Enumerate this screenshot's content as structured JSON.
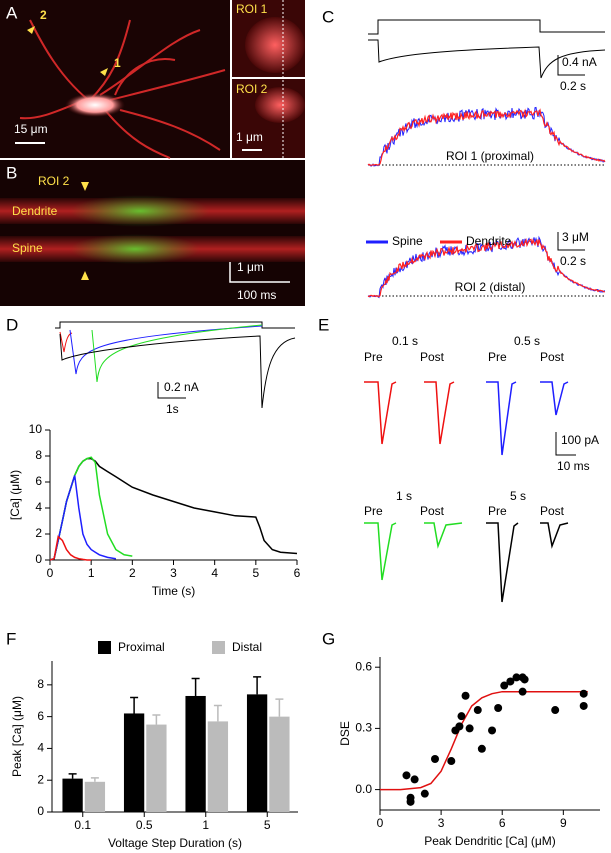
{
  "panel_labels": [
    "A",
    "B",
    "C",
    "D",
    "E",
    "F",
    "G"
  ],
  "panel_a": {
    "markers": [
      "2",
      "1"
    ],
    "scale_main": "15 μm",
    "roi1": "ROI 1",
    "roi2": "ROI 2",
    "scale_inset": "1 μm"
  },
  "panel_b": {
    "roi": "ROI 2",
    "dendrite": "Dendrite",
    "spine": "Spine",
    "scale_x": "1 μm",
    "scale_t": "100 ms"
  },
  "panel_c": {
    "current_scale": "0.4 nA",
    "time_scale_1": "0.2 s",
    "roi1": "ROI 1 (proximal)",
    "legend": [
      "Spine",
      "Dendrite"
    ],
    "legend_colors": [
      "#1f1fff",
      "#ff2222"
    ],
    "conc_scale": "3 μM",
    "time_scale_2": "0.2 s",
    "roi2": "ROI 2 (distal)"
  },
  "panel_d": {
    "current_scale": "0.2 nA",
    "time_scale": "1s"
  },
  "panel_e": {
    "groups": [
      {
        "duration": "0.1 s",
        "pre": "Pre",
        "post": "Post"
      },
      {
        "duration": "0.5 s",
        "pre": "Pre",
        "post": "Post"
      },
      {
        "duration": "1 s",
        "pre": "Pre",
        "post": "Post"
      },
      {
        "duration": "5 s",
        "pre": "Pre",
        "post": "Post"
      }
    ],
    "amp_scale": "100 pA",
    "time_scale": "10 ms"
  },
  "chart_data": [
    {
      "type": "line",
      "xlabel": "Time (s)",
      "ylabel": "[Ca] (μM)",
      "x": [
        0,
        0.1,
        0.2,
        0.3,
        0.4,
        0.5,
        0.6,
        0.7,
        0.8,
        0.9,
        1.0,
        1.1,
        1.2,
        1.4,
        1.6,
        1.8,
        2.0,
        2.5,
        3,
        3.5,
        4,
        4.5,
        5,
        5.1,
        5.2,
        5.4,
        5.6,
        6
      ],
      "series": [
        {
          "name": "5 s",
          "color": "#000000",
          "values": [
            0,
            0.1,
            1.5,
            3,
            4.5,
            5.5,
            6.5,
            7.2,
            7.6,
            7.8,
            7.8,
            7.6,
            7.2,
            6.8,
            6.4,
            6.0,
            5.6,
            5.0,
            4.5,
            4.0,
            3.7,
            3.4,
            3.3,
            2.5,
            1.5,
            0.8,
            0.6,
            0.5
          ]
        },
        {
          "name": "1 s",
          "color": "#22dd22",
          "values": [
            0,
            0.1,
            1.5,
            3,
            4.5,
            5.5,
            6.5,
            7.2,
            7.6,
            7.8,
            7.9,
            7.5,
            5,
            2,
            0.8,
            0.4,
            0.3,
            null,
            null,
            null,
            null,
            null,
            null,
            null,
            null,
            null,
            null,
            null
          ]
        },
        {
          "name": "0.5 s",
          "color": "#1f1fff",
          "values": [
            0,
            0.1,
            1.5,
            3,
            4.5,
            5.5,
            6.5,
            4,
            2,
            1.2,
            0.8,
            0.6,
            0.4,
            0.2,
            0.1,
            null,
            null,
            null,
            null,
            null,
            null,
            null,
            null,
            null,
            null,
            null,
            null,
            null
          ]
        },
        {
          "name": "0.1 s",
          "color": "#ee1111",
          "values": [
            0,
            0.1,
            1.8,
            1.5,
            0.8,
            0.4,
            0.2,
            0.1,
            0.05,
            0,
            0,
            null,
            null,
            null,
            null,
            null,
            null,
            null,
            null,
            null,
            null,
            null,
            null,
            null,
            null,
            null,
            null,
            null
          ]
        }
      ],
      "xlim": [
        0,
        6
      ],
      "xticks": [
        0,
        1,
        2,
        3,
        4,
        5,
        6
      ],
      "ylim": [
        0,
        10
      ],
      "yticks": [
        0,
        2,
        4,
        6,
        8,
        10
      ]
    },
    {
      "type": "bar",
      "xlabel": "Voltage Step Duration (s)",
      "ylabel": "Peak [Ca] (μM)",
      "categories": [
        "0.1",
        "0.5",
        "1",
        "5"
      ],
      "series": [
        {
          "name": "Proximal",
          "color": "#000000",
          "values": [
            2.1,
            6.2,
            7.3,
            7.4
          ],
          "errors": [
            0.3,
            1.0,
            1.1,
            1.1
          ]
        },
        {
          "name": "Distal",
          "color": "#bbbbbb",
          "values": [
            1.9,
            5.5,
            5.7,
            6.0
          ],
          "errors": [
            0.25,
            0.6,
            1.0,
            1.1
          ]
        }
      ],
      "ylim": [
        0,
        9.5
      ],
      "yticks": [
        0,
        2,
        4,
        6,
        8
      ],
      "legend": "top"
    },
    {
      "type": "scatter",
      "xlabel": "Peak Dendritic [Ca] (μM)",
      "ylabel": "DSE",
      "color": "#000000",
      "x": [
        1.3,
        1.5,
        1.5,
        1.7,
        2.2,
        2.7,
        3.5,
        3.7,
        3.9,
        4.0,
        4.2,
        4.4,
        4.8,
        5.0,
        5.5,
        5.8,
        6.1,
        6.4,
        6.7,
        7.0,
        7.1,
        7.0,
        8.6,
        10.0,
        10.0
      ],
      "values": [
        0.07,
        -0.04,
        -0.06,
        0.05,
        -0.02,
        0.15,
        0.14,
        0.29,
        0.31,
        0.36,
        0.46,
        0.3,
        0.39,
        0.2,
        0.29,
        0.4,
        0.51,
        0.53,
        0.55,
        0.55,
        0.54,
        0.48,
        0.39,
        0.47,
        0.41
      ],
      "fit": {
        "color": "#e01010",
        "x": [
          0,
          1,
          2,
          2.5,
          3,
          3.5,
          4,
          4.5,
          5,
          5.5,
          6,
          7,
          8,
          9,
          10.2
        ],
        "values": [
          0,
          0,
          0.01,
          0.03,
          0.09,
          0.2,
          0.32,
          0.41,
          0.45,
          0.47,
          0.48,
          0.48,
          0.48,
          0.48,
          0.48
        ]
      },
      "xlim": [
        0,
        10.8
      ],
      "xticks": [
        0,
        3,
        6,
        9
      ],
      "ylim": [
        -0.1,
        0.65
      ],
      "yticks": [
        {
          "value": 0,
          "label": "0.0"
        },
        {
          "value": 0.3,
          "label": "0.3"
        },
        {
          "value": 0.6,
          "label": "0.6"
        }
      ]
    }
  ]
}
